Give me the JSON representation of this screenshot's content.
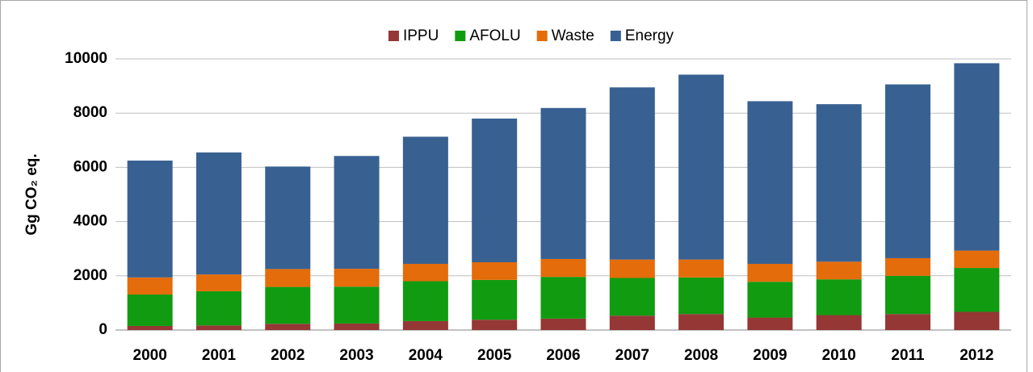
{
  "chart_data": {
    "type": "stacked_bar",
    "ylabel": "Gg CO₂ eq.",
    "categories": [
      "2000",
      "2001",
      "2002",
      "2003",
      "2004",
      "2005",
      "2006",
      "2007",
      "2008",
      "2009",
      "2010",
      "2011",
      "2012"
    ],
    "series": [
      {
        "name": "IPPU",
        "color": "#953735",
        "values": [
          150,
          170,
          230,
          240,
          330,
          380,
          420,
          530,
          590,
          460,
          550,
          590,
          670
        ]
      },
      {
        "name": "AFOLU",
        "color": "#119b11",
        "values": [
          1160,
          1260,
          1360,
          1360,
          1470,
          1470,
          1540,
          1390,
          1350,
          1320,
          1320,
          1410,
          1620
        ]
      },
      {
        "name": "Waste",
        "color": "#e46c0a",
        "values": [
          630,
          620,
          660,
          660,
          640,
          650,
          660,
          680,
          660,
          660,
          650,
          650,
          640
        ]
      },
      {
        "name": "Energy",
        "color": "#386192",
        "values": [
          4310,
          4500,
          3780,
          4160,
          4690,
          5300,
          5570,
          6350,
          6820,
          6000,
          5810,
          6410,
          6910
        ]
      }
    ],
    "ylim": [
      0,
      10000
    ],
    "yticks": [
      0,
      2000,
      4000,
      6000,
      8000,
      10000
    ],
    "grid": true,
    "legend": "top"
  }
}
